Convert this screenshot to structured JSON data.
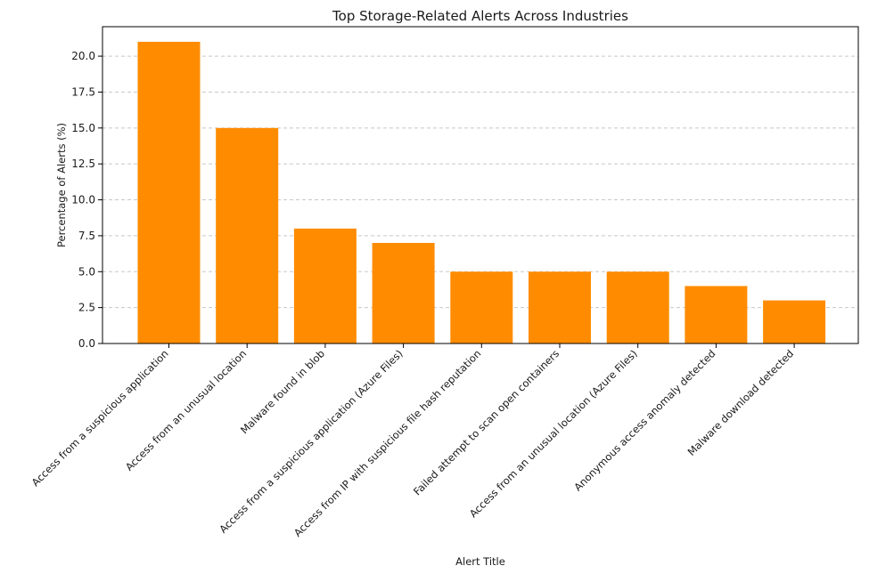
{
  "chart_data": {
    "type": "bar",
    "title": "Top Storage-Related Alerts Across Industries",
    "xlabel": "Alert Title",
    "ylabel": "Percentage of Alerts (%)",
    "categories": [
      "Access from a suspicious application",
      "Access from an unusual location",
      "Malware found in blob",
      "Access from a suspicious application (Azure Files)",
      "Access from IP with suspicious file hash reputation",
      "Failed attempt to scan open containers",
      "Access from an unusual location (Azure Files)",
      "Anonymous access anomaly detected",
      "Malware download detected"
    ],
    "values": [
      21,
      15,
      8,
      7,
      5,
      5,
      5,
      4,
      3
    ],
    "ylim": [
      0,
      22.05
    ],
    "yticks": [
      "0.0",
      "2.5",
      "5.0",
      "7.5",
      "10.0",
      "12.5",
      "15.0",
      "17.5",
      "20.0"
    ],
    "ytick_values": [
      0,
      2.5,
      5,
      7.5,
      10,
      12.5,
      15,
      17.5,
      20
    ],
    "grid": "y-dashed",
    "bar_color": "#ff8c00",
    "grid_color": "#c8c8c8"
  }
}
